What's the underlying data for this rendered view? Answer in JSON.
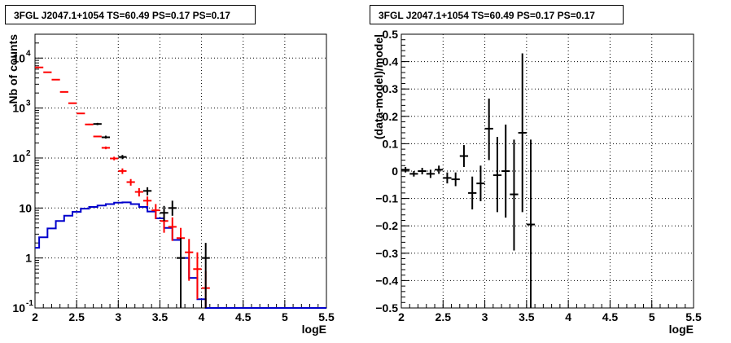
{
  "chart_data": [
    {
      "type": "line",
      "title": "3FGL J2047.1+1054 TS=60.49 PS=0.17 PS=0.17",
      "xlabel": "logE",
      "ylabel": "Nb of counts",
      "xlim": [
        2,
        5.5
      ],
      "ylim": [
        0.1,
        30000
      ],
      "yscale": "log",
      "grid": true,
      "x_ticks": [
        "2",
        "2.5",
        "3",
        "3.5",
        "4",
        "4.5",
        "5",
        "5.5"
      ],
      "y_ticks": [
        {
          "value": 0.1,
          "label": "10",
          "exp": "-1"
        },
        {
          "value": 1,
          "label": "1",
          "exp": ""
        },
        {
          "value": 10,
          "label": "10",
          "exp": ""
        },
        {
          "value": 100,
          "label": "10",
          "exp": "2"
        },
        {
          "value": 1000,
          "label": "10",
          "exp": "3"
        },
        {
          "value": 10000,
          "label": "10",
          "exp": "4"
        }
      ],
      "series": [
        {
          "color": "#ff0000",
          "style": "errorbar",
          "x": [
            2.05,
            2.15,
            2.25,
            2.35,
            2.45,
            2.55,
            2.65,
            2.75,
            2.85,
            2.95,
            3.05,
            3.15,
            3.25,
            3.35,
            3.45,
            3.55,
            3.65,
            3.75,
            3.85,
            3.95,
            4.05
          ],
          "y": [
            6500,
            5200,
            3700,
            2100,
            1250,
            780,
            470,
            270,
            160,
            98,
            55,
            33,
            21,
            14,
            9,
            5.5,
            4.2,
            2.5,
            1.3,
            0.6,
            0.25
          ],
          "ylo": [
            6400,
            5100,
            3650,
            2050,
            1220,
            760,
            455,
            260,
            150,
            90,
            48,
            28,
            17,
            11,
            6,
            3.2,
            2.2,
            1.1,
            0.35,
            0.15,
            0.1
          ],
          "yhi": [
            6600,
            5300,
            3760,
            2150,
            1280,
            800,
            485,
            280,
            170,
            106,
            62,
            38,
            25,
            17,
            12,
            8,
            6.5,
            4,
            2.4,
            1.3,
            0.55
          ]
        },
        {
          "color": "#000000",
          "style": "errorbar",
          "x": [
            2.75,
            2.85,
            3.05,
            3.35,
            3.55,
            3.65,
            3.75,
            4.05
          ],
          "y": [
            480,
            260,
            105,
            22,
            8,
            10,
            1,
            1
          ],
          "ylo": [
            455,
            245,
            95,
            18,
            5.5,
            7,
            0.1,
            0.1
          ],
          "yhi": [
            505,
            280,
            115,
            26,
            11,
            14,
            2.5,
            2
          ]
        },
        {
          "color": "#0000cc",
          "style": "step",
          "x": [
            2.0,
            2.05,
            2.15,
            2.25,
            2.35,
            2.45,
            2.55,
            2.65,
            2.75,
            2.85,
            2.95,
            3.05,
            3.15,
            3.25,
            3.35,
            3.45,
            3.55,
            3.65,
            3.75,
            3.85,
            3.95,
            4.05,
            4.15,
            5.5
          ],
          "y": [
            1.6,
            2.6,
            3.9,
            5.5,
            7.0,
            8.4,
            9.7,
            10.5,
            11.2,
            12.0,
            12.8,
            13.0,
            12.0,
            10.5,
            8.5,
            6.2,
            4.0,
            2.3,
            1.0,
            0.4,
            0.15,
            0.1,
            0.1,
            0.1
          ]
        }
      ]
    },
    {
      "type": "scatter",
      "title": "3FGL J2047.1+1054 TS=60.49 PS=0.17 PS=0.17",
      "xlabel": "logE",
      "ylabel": "(data-model)/model",
      "xlim": [
        2,
        5.5
      ],
      "ylim": [
        -0.5,
        0.5
      ],
      "grid": true,
      "x_ticks": [
        "2",
        "2.5",
        "3",
        "3.5",
        "4",
        "4.5",
        "5",
        "5.5"
      ],
      "y_ticks": [
        "−0.5",
        "−0.4",
        "−0.3",
        "−0.2",
        "−0.1",
        "0",
        "0.1",
        "0.2",
        "0.3",
        "0.4",
        "0.5"
      ],
      "series": [
        {
          "color": "#000000",
          "x": [
            2.05,
            2.15,
            2.25,
            2.35,
            2.45,
            2.55,
            2.65,
            2.75,
            2.85,
            2.95,
            3.05,
            3.15,
            3.25,
            3.35,
            3.45,
            3.55
          ],
          "y": [
            0.005,
            -0.01,
            0.0,
            -0.01,
            0.005,
            -0.025,
            -0.03,
            0.055,
            -0.08,
            -0.045,
            0.155,
            -0.015,
            0.0,
            -0.085,
            0.14,
            -0.195
          ],
          "ylo": [
            -0.005,
            -0.02,
            -0.012,
            -0.025,
            -0.01,
            -0.045,
            -0.055,
            0.015,
            -0.14,
            -0.11,
            0.04,
            -0.15,
            -0.17,
            -0.29,
            -0.15,
            -0.5
          ],
          "yhi": [
            0.015,
            0.0,
            0.012,
            0.005,
            0.02,
            -0.005,
            -0.005,
            0.095,
            -0.02,
            0.02,
            0.265,
            0.125,
            0.17,
            0.115,
            0.43,
            0.115
          ]
        }
      ]
    }
  ]
}
